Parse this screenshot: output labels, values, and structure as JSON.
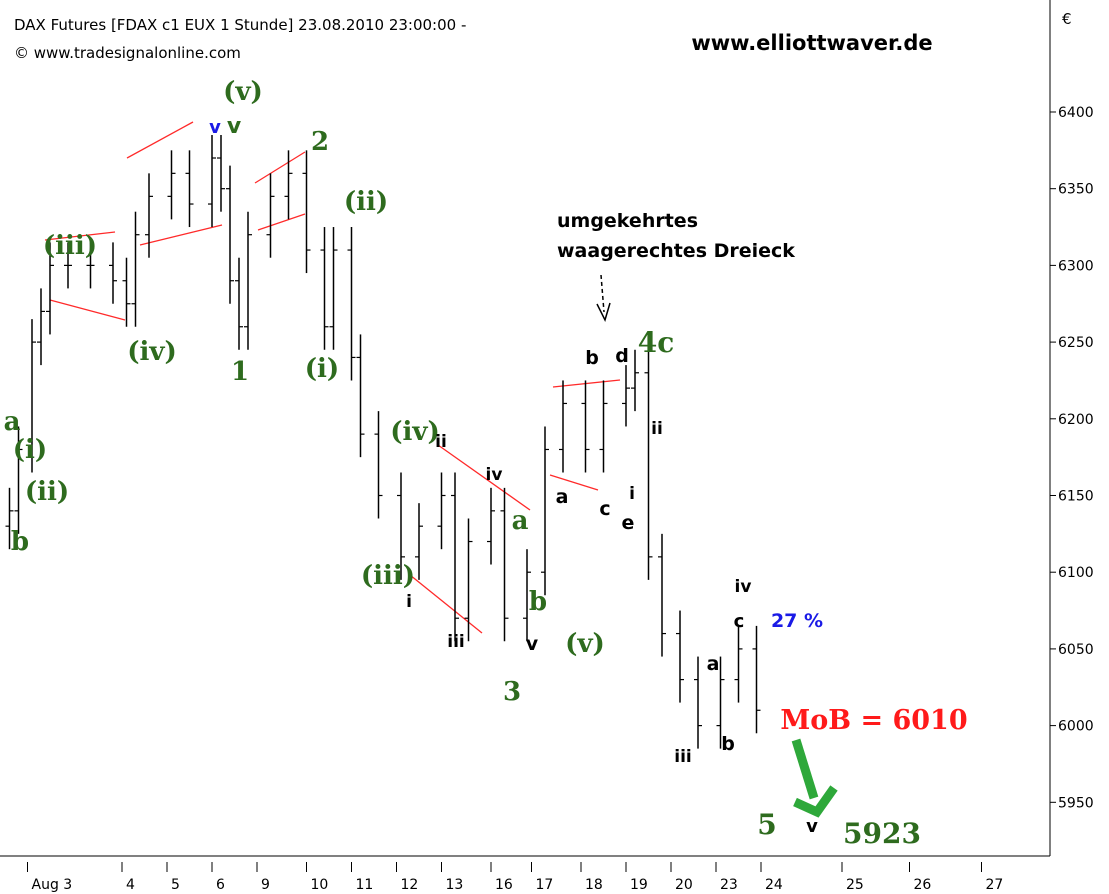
{
  "chart_data": {
    "type": "ohlc",
    "title": "DAX Futures [FDAX c1 EUX  1 Stunde] 23.08.2010 23:00:00 -",
    "subtitle": "© www.tradesignalonline.com",
    "watermark": "www.elliottwaver.de",
    "y_axis_label": "€",
    "color": "#000000",
    "x": [
      1,
      3,
      6,
      8,
      10,
      14,
      19,
      24,
      27,
      29,
      32,
      37,
      41,
      46,
      48,
      50,
      52,
      54,
      59,
      63,
      67,
      71,
      73,
      77,
      79,
      83,
      88,
      92,
      97,
      100,
      103,
      108,
      111,
      116,
      120,
      124,
      129,
      133,
      138,
      140,
      143,
      146,
      150,
      154,
      159,
      163,
      167
    ],
    "open": [
      6130,
      6140,
      6180,
      6250,
      6270,
      6300,
      6300,
      6300,
      6290,
      6275,
      6320,
      6345,
      6360,
      6340,
      6370,
      6350,
      6290,
      6260,
      6320,
      6345,
      6360,
      6310,
      6260,
      6310,
      6240,
      6190,
      6150,
      6110,
      6130,
      6150,
      6070,
      6120,
      6140,
      6070,
      6100,
      6180,
      6210,
      6180,
      6210,
      6220,
      6230,
      6110,
      6060,
      6030,
      6000,
      6030,
      6050
    ],
    "high": [
      6155,
      6195,
      6265,
      6285,
      6315,
      6315,
      6315,
      6315,
      6305,
      6335,
      6360,
      6375,
      6375,
      6385,
      6385,
      6365,
      6305,
      6335,
      6360,
      6375,
      6375,
      6325,
      6325,
      6325,
      6255,
      6205,
      6165,
      6145,
      6165,
      6165,
      6135,
      6155,
      6155,
      6115,
      6195,
      6225,
      6225,
      6225,
      6235,
      6245,
      6245,
      6125,
      6075,
      6045,
      6045,
      6065,
      6065
    ],
    "low": [
      6115,
      6125,
      6165,
      6235,
      6255,
      6285,
      6285,
      6275,
      6260,
      6260,
      6305,
      6330,
      6325,
      6325,
      6335,
      6275,
      6245,
      6245,
      6305,
      6330,
      6295,
      6245,
      6245,
      6225,
      6175,
      6135,
      6095,
      6095,
      6115,
      6055,
      6055,
      6105,
      6055,
      6055,
      6085,
      6165,
      6165,
      6165,
      6195,
      6205,
      6095,
      6045,
      6015,
      5985,
      5985,
      6015,
      5995
    ],
    "close": [
      6140,
      6180,
      6250,
      6270,
      6300,
      6300,
      6300,
      6290,
      6275,
      6320,
      6345,
      6360,
      6340,
      6370,
      6350,
      6290,
      6260,
      6320,
      6345,
      6360,
      6310,
      6260,
      6310,
      6240,
      6190,
      6150,
      6110,
      6130,
      6150,
      6070,
      6120,
      6140,
      6070,
      6100,
      6180,
      6210,
      6180,
      6210,
      6220,
      6230,
      6110,
      6060,
      6030,
      6000,
      6030,
      6050,
      6010
    ],
    "xlim": [
      0,
      232
    ],
    "xticks": [
      {
        "value": 5,
        "label": "Aug 3"
      },
      {
        "value": 26,
        "label": "4"
      },
      {
        "value": 36,
        "label": "5"
      },
      {
        "value": 46,
        "label": "6"
      },
      {
        "value": 56,
        "label": "9"
      },
      {
        "value": 67,
        "label": "10"
      },
      {
        "value": 77,
        "label": "11"
      },
      {
        "value": 87,
        "label": "12"
      },
      {
        "value": 97,
        "label": "13"
      },
      {
        "value": 108,
        "label": "16"
      },
      {
        "value": 117,
        "label": "17"
      },
      {
        "value": 128,
        "label": "18"
      },
      {
        "value": 138,
        "label": "19"
      },
      {
        "value": 148,
        "label": "20"
      },
      {
        "value": 158,
        "label": "23"
      },
      {
        "value": 168,
        "label": "24"
      },
      {
        "value": 186,
        "label": "25"
      },
      {
        "value": 201,
        "label": "26"
      },
      {
        "value": 217,
        "label": "27"
      }
    ],
    "ylim": [
      5915,
      6473
    ],
    "yticks": [
      5950,
      6000,
      6050,
      6100,
      6150,
      6200,
      6250,
      6300,
      6350,
      6400
    ],
    "annotations": [
      {
        "text": "(v)",
        "color": "#2e6b1e"
      },
      {
        "text": "2",
        "color": "#2e6b1e"
      },
      {
        "text": "(ii)",
        "color": "#2e6b1e"
      },
      {
        "text": "(iii)",
        "color": "#2e6b1e"
      },
      {
        "text": "(iv)",
        "color": "#2e6b1e"
      },
      {
        "text": "1",
        "color": "#2e6b1e"
      },
      {
        "text": "(i)",
        "color": "#2e6b1e"
      },
      {
        "text": "(iv)",
        "color": "#2e6b1e"
      },
      {
        "text": "(iii)",
        "color": "#2e6b1e"
      },
      {
        "text": "3",
        "color": "#2e6b1e"
      },
      {
        "text": "(v)",
        "color": "#2e6b1e"
      },
      {
        "text": "4c",
        "color": "#2e6b1e"
      },
      {
        "text": "a",
        "color": "#2e6b1e"
      },
      {
        "text": "(i)",
        "color": "#2e6b1e"
      },
      {
        "text": "(ii)",
        "color": "#2e6b1e"
      },
      {
        "text": "b",
        "color": "#2e6b1e"
      },
      {
        "text": "a",
        "color": "#2e6b1e"
      },
      {
        "text": "b",
        "color": "#2e6b1e"
      },
      {
        "text": "5",
        "color": "#2e6b1e"
      },
      {
        "text": "5923",
        "color": "#2e6b1e"
      },
      {
        "text": "v",
        "color": "#1a1ae6"
      },
      {
        "text": "v",
        "color": "#2e6b1e"
      },
      {
        "text": "ii",
        "color": "#000000"
      },
      {
        "text": "iv",
        "color": "#000000"
      },
      {
        "text": "i",
        "color": "#000000"
      },
      {
        "text": "iii",
        "color": "#000000"
      },
      {
        "text": "v",
        "color": "#000000"
      },
      {
        "text": "b",
        "color": "#000000"
      },
      {
        "text": "d",
        "color": "#000000"
      },
      {
        "text": "a",
        "color": "#000000"
      },
      {
        "text": "c",
        "color": "#000000"
      },
      {
        "text": "ii",
        "color": "#000000"
      },
      {
        "text": "i",
        "color": "#000000"
      },
      {
        "text": "e",
        "color": "#000000"
      },
      {
        "text": "iv",
        "color": "#000000"
      },
      {
        "text": "c",
        "color": "#000000"
      },
      {
        "text": "a",
        "color": "#000000"
      },
      {
        "text": "iii",
        "color": "#000000"
      },
      {
        "text": "b",
        "color": "#000000"
      },
      {
        "text": "v",
        "color": "#000000"
      },
      {
        "text": "27 %",
        "color": "#1a1ae6"
      },
      {
        "text": "MoB = 6010",
        "color": "#ff1a1a"
      },
      {
        "text": "umgekehrtes",
        "color": "#000000"
      },
      {
        "text": "waagerechtes Dreieck",
        "color": "#000000"
      }
    ]
  }
}
